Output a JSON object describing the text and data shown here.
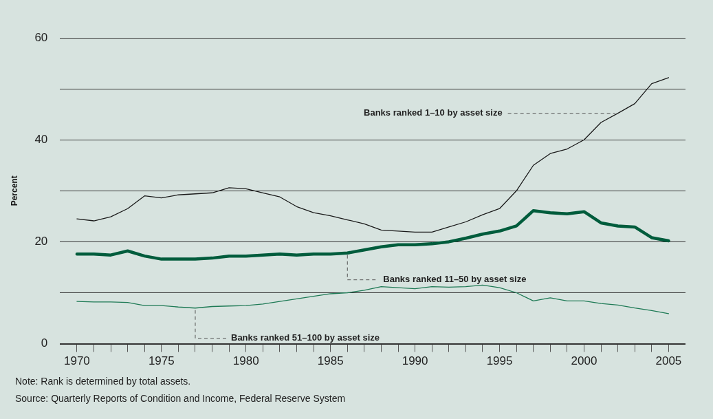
{
  "chart_data": {
    "type": "line",
    "ylabel": "Percent",
    "x": [
      1970,
      1971,
      1972,
      1973,
      1974,
      1975,
      1976,
      1977,
      1978,
      1979,
      1980,
      1981,
      1982,
      1983,
      1984,
      1985,
      1986,
      1987,
      1988,
      1989,
      1990,
      1991,
      1992,
      1993,
      1994,
      1995,
      1996,
      1997,
      1998,
      1999,
      2000,
      2001,
      2002,
      2003,
      2004,
      2005
    ],
    "series": [
      {
        "color": "#1a1a1a",
        "values": [
          24.5,
          24.1,
          24.9,
          26.5,
          29.0,
          28.6,
          29.2,
          29.4,
          29.6,
          30.6,
          30.4,
          29.6,
          28.8,
          26.9,
          25.7,
          25.1,
          24.3,
          23.5,
          22.3,
          22.1,
          21.9,
          21.9,
          22.9,
          23.9,
          25.3,
          26.5,
          30.0,
          35.0,
          37.3,
          38.2,
          40.0,
          43.4,
          45.2,
          47.1,
          51.0,
          52.2
        ]
      },
      {
        "color": "#005c3c",
        "values": [
          17.6,
          17.6,
          17.4,
          18.2,
          17.2,
          16.6,
          16.6,
          16.6,
          16.8,
          17.2,
          17.2,
          17.4,
          17.6,
          17.4,
          17.6,
          17.6,
          17.8,
          18.4,
          19.0,
          19.4,
          19.4,
          19.6,
          20.0,
          20.7,
          21.5,
          22.1,
          23.1,
          26.1,
          25.7,
          25.5,
          25.9,
          23.7,
          23.1,
          22.9,
          20.8,
          20.2
        ]
      },
      {
        "color": "#1e7a55",
        "values": [
          8.3,
          8.2,
          8.2,
          8.1,
          7.5,
          7.5,
          7.2,
          7.0,
          7.3,
          7.4,
          7.5,
          7.8,
          8.3,
          8.8,
          9.3,
          9.8,
          10.0,
          10.5,
          11.2,
          11.0,
          10.8,
          11.2,
          11.1,
          11.2,
          11.5,
          11.0,
          10.0,
          8.4,
          9.0,
          8.4,
          8.4,
          7.9,
          7.6,
          7.0,
          6.5,
          5.9
        ]
      }
    ],
    "xlim": [
      1969,
      2006
    ],
    "xticks": [
      1970,
      {
        "value": 1971,
        "label": null
      },
      {
        "value": 1972,
        "label": null
      },
      {
        "value": 1973,
        "label": null
      },
      {
        "value": 1974,
        "label": null
      },
      1975,
      {
        "value": 1976,
        "label": null
      },
      {
        "value": 1977,
        "label": null
      },
      {
        "value": 1978,
        "label": null
      },
      {
        "value": 1979,
        "label": null
      },
      1980,
      {
        "value": 1981,
        "label": null
      },
      {
        "value": 1982,
        "label": null
      },
      {
        "value": 1983,
        "label": null
      },
      {
        "value": 1984,
        "label": null
      },
      1985,
      {
        "value": 1986,
        "label": null
      },
      {
        "value": 1987,
        "label": null
      },
      {
        "value": 1988,
        "label": null
      },
      {
        "value": 1989,
        "label": null
      },
      1990,
      {
        "value": 1991,
        "label": null
      },
      {
        "value": 1992,
        "label": null
      },
      {
        "value": 1993,
        "label": null
      },
      {
        "value": 1994,
        "label": null
      },
      1995,
      {
        "value": 1996,
        "label": null
      },
      {
        "value": 1997,
        "label": null
      },
      {
        "value": 1998,
        "label": null
      },
      {
        "value": 1999,
        "label": null
      },
      2000,
      {
        "value": 2001,
        "label": null
      },
      {
        "value": 2002,
        "label": null
      },
      {
        "value": 2003,
        "label": null
      },
      {
        "value": 2004,
        "label": null
      },
      2005
    ],
    "ylim": [
      0,
      60
    ],
    "yticks": [
      0,
      {
        "value": 10,
        "label": null
      },
      20,
      {
        "value": 30,
        "label": null
      },
      40,
      {
        "value": 50,
        "label": null
      },
      60
    ],
    "grid": "y",
    "legend": false,
    "marker": "none",
    "line_style": "solid",
    "annotations": [
      {
        "text": "Banks ranked 1–10 by asset size",
        "x": 2002,
        "y": 45.2
      },
      {
        "text": "Banks ranked 11–50 by asset size",
        "x": 1986,
        "y": 17.8
      },
      {
        "text": "Banks ranked 51–100 by asset size",
        "x": 1977,
        "y": 7.0
      },
      "Note: Rank is determined by total assets.",
      "Source: Quarterly Reports of Condition and Income, Federal Reserve System"
    ]
  }
}
